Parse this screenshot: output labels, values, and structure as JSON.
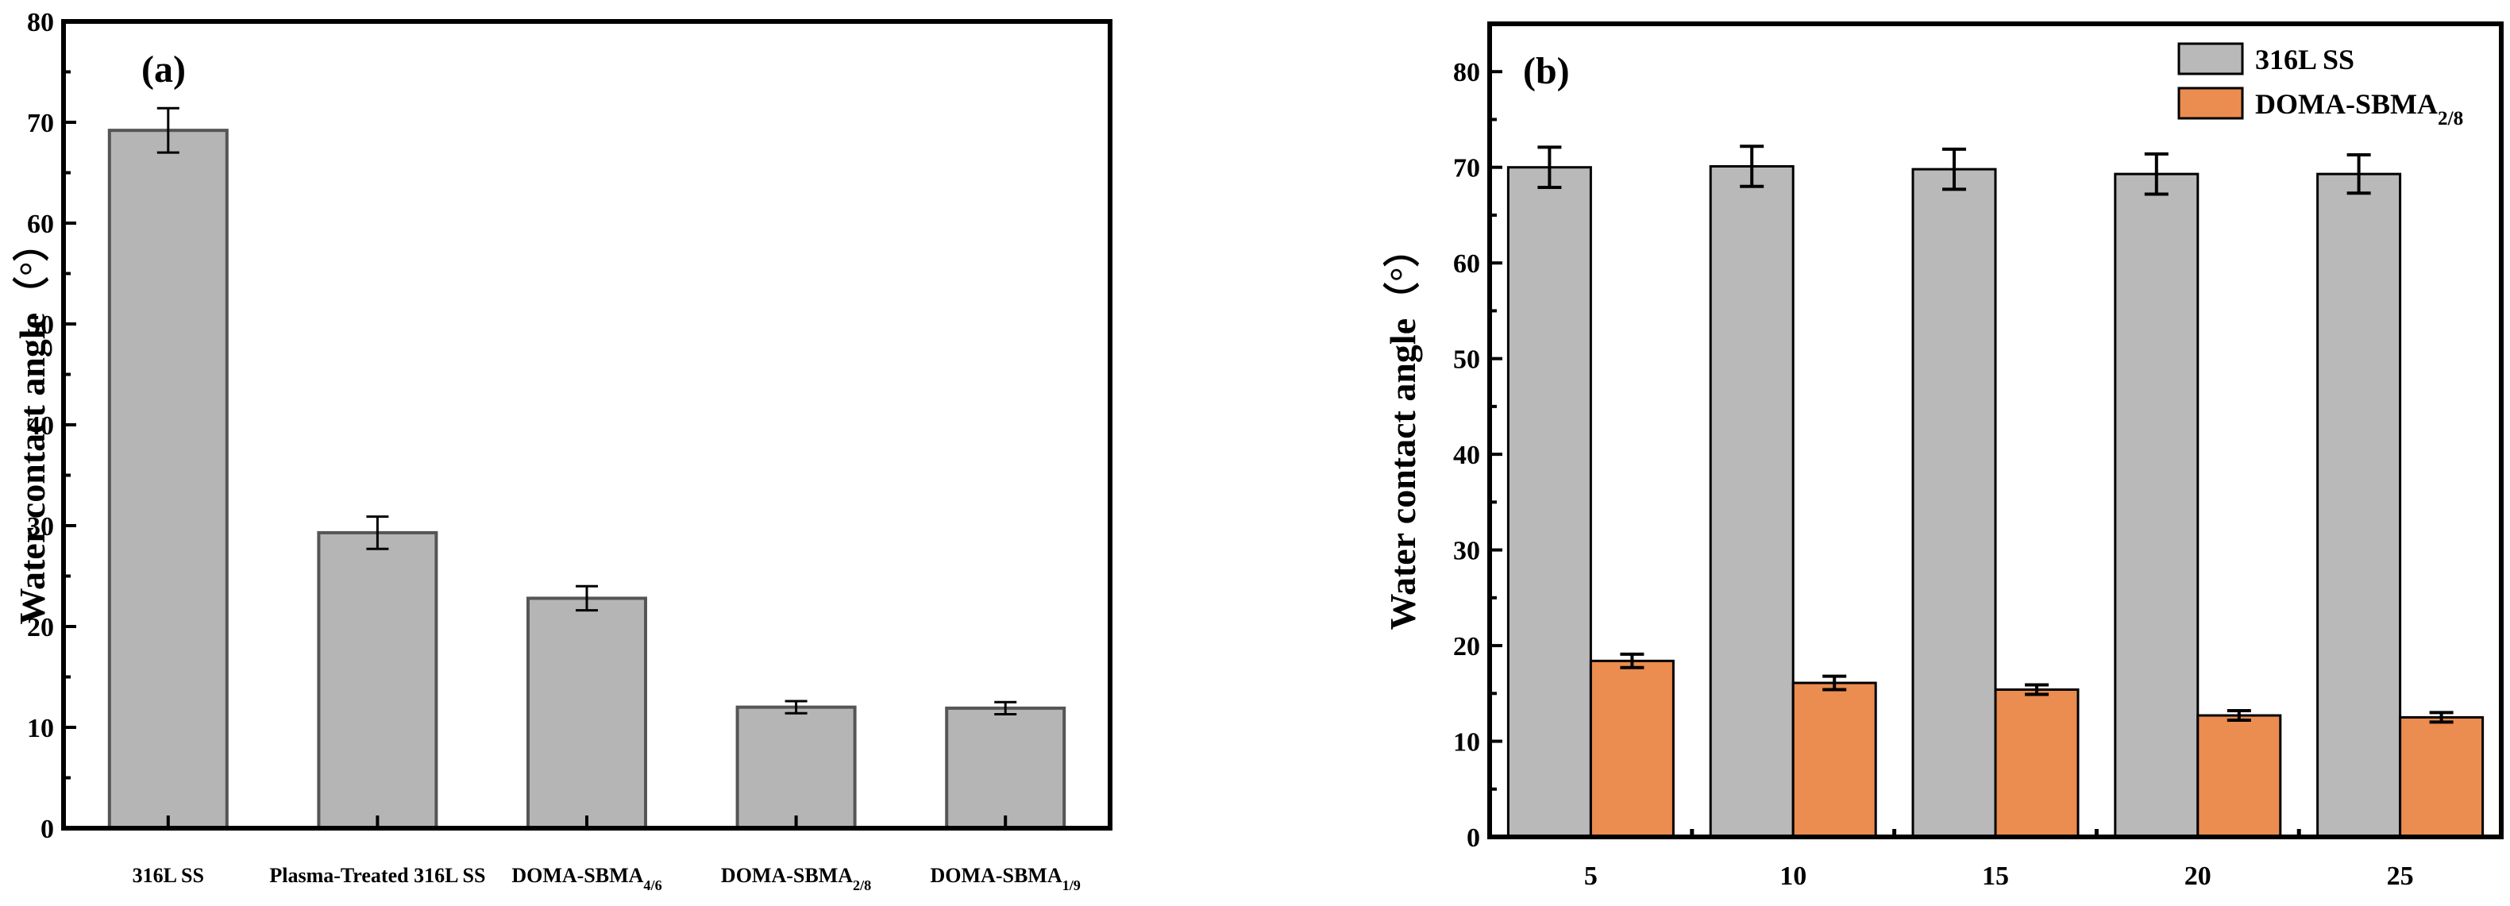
{
  "chart_data": [
    {
      "panel": "(a)",
      "type": "bar",
      "ylabel": "Water contact angle（°）",
      "ylim": [
        0,
        80
      ],
      "yticks": [
        "0",
        "10",
        "20",
        "30",
        "40",
        "50",
        "60",
        "70",
        "80"
      ],
      "categories": [
        {
          "text": "316L SS",
          "sub": "",
          "tail": ""
        },
        {
          "text": "Plasma-Treated 316L SS",
          "sub": "",
          "tail": ""
        },
        {
          "text": "DOMA-SBMA",
          "sub": "4/6",
          "tail": ""
        },
        {
          "text": "DOMA-SBMA",
          "sub": "2/8",
          "tail": ""
        },
        {
          "text": "DOMA-SBMA",
          "sub": "1/9",
          "tail": ""
        }
      ],
      "values": [
        69.2,
        29.3,
        22.8,
        12.0,
        11.9
      ],
      "errors": [
        2.2,
        1.6,
        1.2,
        0.6,
        0.6
      ],
      "color": "#b5b5b5",
      "edge": "#555555"
    },
    {
      "panel": "(b)",
      "type": "bar",
      "ylabel": "Water contact angle（°）",
      "ylim": [
        0,
        85
      ],
      "yticks": [
        "0",
        "10",
        "20",
        "30",
        "40",
        "50",
        "60",
        "70",
        "80"
      ],
      "categories": [
        "5",
        "10",
        "15",
        "20",
        "25"
      ],
      "series": [
        {
          "name": "316L SS",
          "sub": "",
          "color": "#b9b9b9",
          "values": [
            70.0,
            70.1,
            69.8,
            69.3,
            69.3
          ],
          "errors": [
            2.1,
            2.1,
            2.1,
            2.1,
            2.0
          ]
        },
        {
          "name": "DOMA-SBMA",
          "sub": "2/8",
          "color": "#eb8c50",
          "values": [
            18.4,
            16.1,
            15.4,
            12.7,
            12.5
          ],
          "errors": [
            0.7,
            0.7,
            0.5,
            0.5,
            0.5
          ]
        }
      ],
      "legend": "top-right"
    }
  ]
}
